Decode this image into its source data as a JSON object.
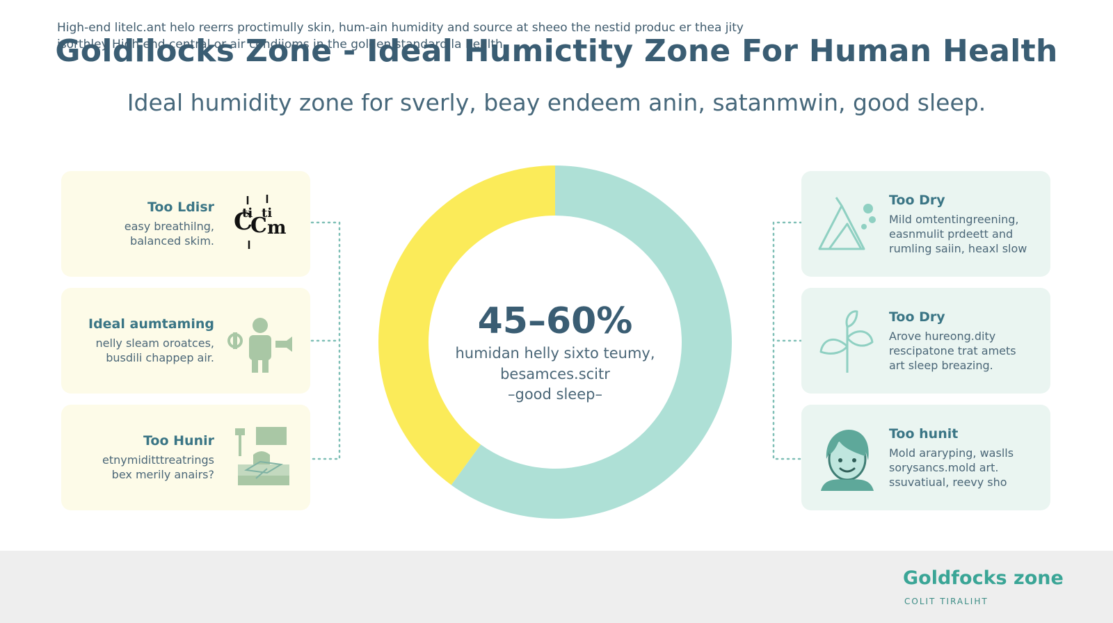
{
  "title": "Goldilocks Zone - Ideal Humictity Zone For Human Health",
  "subtitle": "Ideal humidity zone for sverly, beay endeem anin, satanmwin, good sleep.",
  "left_cards": [
    {
      "title": "Too Ldisr",
      "body": "easy breathilng,\nbalanced skim.",
      "icon": "mold-letters-icon"
    },
    {
      "title": "Ideal aumtaming",
      "body": "nelly sleam oroatces,\nbusdili chappep air.",
      "icon": "person-humidifier-icon"
    },
    {
      "title": "Too Hunir",
      "body": "etnymiditttreatrings\nbex merily anairs?",
      "icon": "bedroom-icon"
    }
  ],
  "right_cards": [
    {
      "title": "Too Dry",
      "body": "Mild omtentingreening,\neasnmulit prdeett and\nrumling saiin, heaxl slow",
      "icon": "dry-mountain-icon"
    },
    {
      "title": "Too Dry",
      "body": "Arove hureong.dity\nrescipatone trat amets\nart sleep breazing.",
      "icon": "plant-icon"
    },
    {
      "title": "Too hunit",
      "body": "Mold araryping, waslls\nsorysancs.mold art.\nssuvatiual, reevy sho",
      "icon": "face-icon"
    }
  ],
  "chart_data": {
    "type": "pie",
    "donut": true,
    "slices": [
      {
        "label": "",
        "value": 60,
        "color": "#aee0d6"
      },
      {
        "label": "",
        "value": 40,
        "color": "#fbeb59"
      }
    ],
    "center_value": "45–60%",
    "center_lines": [
      "humidan helly sixto teumy,",
      "besamces.scitr",
      "–good sleep–"
    ]
  },
  "footer": {
    "text": "High-end litelc.ant helo reerrs proctimully skin, hum-ain humidity and source at sheeo the nestid produc er thea jity\nisorthley High end central or air condiioms in the golden standard la health.",
    "brand": "Goldfocks zone",
    "brand_sub": "COLIT TIRALIHT"
  },
  "colors": {
    "yellow": "#fbeb59",
    "teal": "#aee0d6",
    "title": "#3a5d73",
    "accent": "#3aa596"
  }
}
